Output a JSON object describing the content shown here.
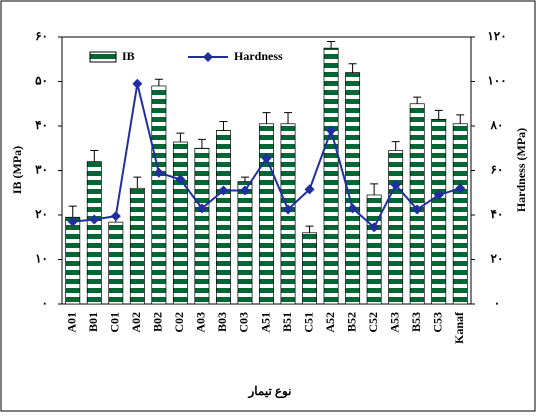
{
  "chart_data": {
    "type": "bar_line",
    "xlabel": "نوع تیمار",
    "ylabel": "IB (MPa)",
    "y2label": "Hardness (MPa)",
    "categories": [
      "A01",
      "B01",
      "C01",
      "A02",
      "B02",
      "C02",
      "A03",
      "B03",
      "C03",
      "A51",
      "B51",
      "C51",
      "A52",
      "B52",
      "C52",
      "A53",
      "B53",
      "C53",
      "Kanaf"
    ],
    "series": [
      {
        "name": "IB",
        "type": "bar",
        "color": "#006633",
        "values": [
          19.5,
          32,
          18.4,
          26,
          49,
          36.4,
          35,
          39,
          27.5,
          40.5,
          40.5,
          16,
          57.5,
          52,
          24.5,
          34.5,
          45,
          41.5,
          40.5
        ],
        "errors": [
          2.5,
          2.5,
          1.5,
          2.5,
          1.5,
          2,
          2,
          2,
          1,
          2.5,
          2.5,
          1.5,
          1.5,
          2,
          2.5,
          2,
          1.5,
          2,
          2
        ]
      },
      {
        "name": "Hardness",
        "type": "line",
        "axis": "y2",
        "color": "#1f2f9f",
        "values": [
          37,
          38,
          39.5,
          99,
          59,
          56,
          43,
          51,
          51,
          65.5,
          42.5,
          51.5,
          78,
          43,
          34.5,
          53.5,
          42.5,
          49,
          52
        ]
      }
    ],
    "ylim": [
      0,
      60
    ],
    "yticks": [
      {
        "value": 0,
        "label": "۰"
      },
      {
        "value": 10,
        "label": "۱۰"
      },
      {
        "value": 20,
        "label": "۲۰"
      },
      {
        "value": 30,
        "label": "۳۰"
      },
      {
        "value": 40,
        "label": "۴۰"
      },
      {
        "value": 50,
        "label": "۵۰"
      },
      {
        "value": 60,
        "label": "۶۰"
      }
    ],
    "y2lim": [
      0,
      120
    ],
    "y2ticks": [
      {
        "value": 0,
        "label": "۰"
      },
      {
        "value": 20,
        "label": "۲۰"
      },
      {
        "value": 40,
        "label": "۴۰"
      },
      {
        "value": 60,
        "label": "۶۰"
      },
      {
        "value": 80,
        "label": "۸۰"
      },
      {
        "value": 100,
        "label": "۱۰۰"
      },
      {
        "value": 120,
        "label": "۱۲۰"
      }
    ]
  }
}
